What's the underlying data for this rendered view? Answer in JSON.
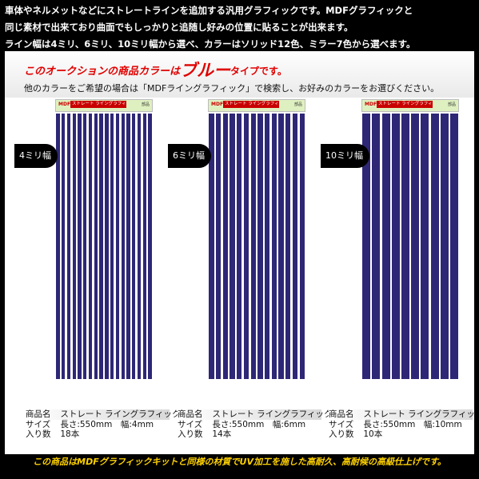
{
  "header": {
    "lines": [
      "車体やネルメットなどにストレートラインを追加する汎用グラフィックです。MDFグラフィックと",
      "同じ素材で出来ており曲面でもしっかりと追随し好みの位置に貼ることが出来ます。",
      "ライン幅は4ミリ、6ミリ、10ミリ幅から選べ、カラーはソリッド12色、ミラー7色から選べます。"
    ]
  },
  "notice": {
    "prefix": "このオークションの商品カラーは",
    "color": "ブルー",
    "suffix": "タイプです。",
    "search_text": "他のカラーをご希望の場合は「MDFライングラフィック」で検索し、お好みのカラーをお選びください。"
  },
  "products": [
    {
      "width_label": "4ミリ幅",
      "brand": "MDF",
      "header_name": "ストレート ライングラフィック",
      "header_tag": "部品",
      "strip_count": 18,
      "strip_width_mm": 4,
      "spec": {
        "name_key": "商品名",
        "name_val": "ストレート ライングラフィック",
        "size_key": "サイズ",
        "size_val": "長さ:550mm　幅:4mm",
        "qty_key": "入り数",
        "qty_val": "18本"
      }
    },
    {
      "width_label": "6ミリ幅",
      "brand": "MDF",
      "header_name": "ストレート ライングラフィック",
      "header_tag": "部品",
      "strip_count": 14,
      "strip_width_mm": 6,
      "spec": {
        "name_key": "商品名",
        "name_val": "ストレート ライングラフィック",
        "size_key": "サイズ",
        "size_val": "長さ:550mm　幅:6mm",
        "qty_key": "入り数",
        "qty_val": "14本"
      }
    },
    {
      "width_label": "10ミリ幅",
      "brand": "MDF",
      "header_name": "ストレート ライングラフィック",
      "header_tag": "部品",
      "strip_count": 10,
      "strip_width_mm": 10,
      "spec": {
        "name_key": "商品名",
        "name_val": "ストレート ライングラフィック",
        "size_key": "サイズ",
        "size_val": "長さ:550mm　幅:10mm",
        "qty_key": "入り数",
        "qty_val": "10本"
      }
    }
  ],
  "footer": {
    "text": "この商品はMDFグラフィックキットと同様の材質でUV加工を施した高耐久、高耐候の高級仕上げです。"
  },
  "colors": {
    "strip": "#2e2776",
    "accent_red": "#e00000",
    "footer_yellow": "#ffd200"
  }
}
